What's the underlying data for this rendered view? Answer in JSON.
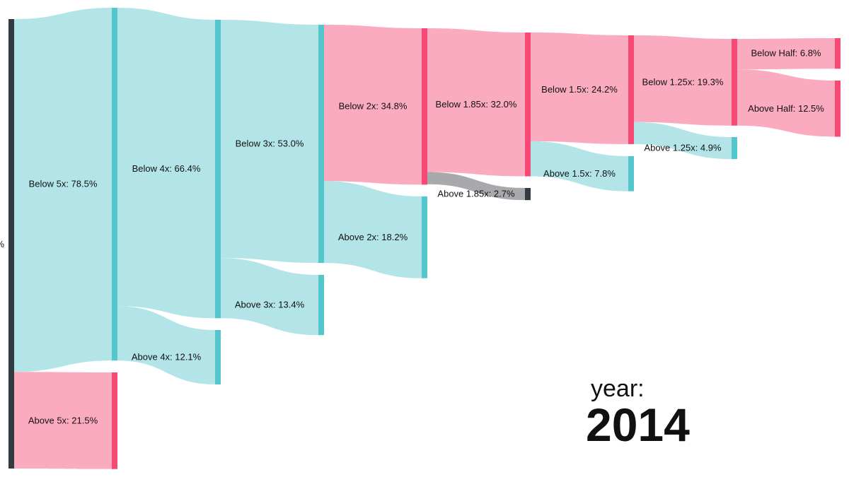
{
  "chart_data": {
    "type": "sankey",
    "unit": "%",
    "root_label_fragment": "%",
    "year_caption": "year:",
    "year": "2014",
    "colors": {
      "teal_node": "#54c6cc",
      "teal_link": "#b3e5e8",
      "pink_node": "#f64a75",
      "pink_link": "#fbabbf",
      "dark_node": "#343a42",
      "grey_link": "#a7a9ac"
    },
    "nodes": [
      {
        "id": "root",
        "label": "",
        "value": 100.0,
        "color": "dark"
      },
      {
        "id": "b5",
        "label": "Below 5x: 78.5%",
        "value": 78.5,
        "color": "teal"
      },
      {
        "id": "a5",
        "label": "Above 5x: 21.5%",
        "value": 21.5,
        "color": "pink"
      },
      {
        "id": "b4",
        "label": "Below 4x: 66.4%",
        "value": 66.4,
        "color": "teal"
      },
      {
        "id": "a4",
        "label": "Above 4x: 12.1%",
        "value": 12.1,
        "color": "teal"
      },
      {
        "id": "b3",
        "label": "Below 3x: 53.0%",
        "value": 53.0,
        "color": "teal"
      },
      {
        "id": "a3",
        "label": "Above 3x: 13.4%",
        "value": 13.4,
        "color": "teal"
      },
      {
        "id": "b2",
        "label": "Below 2x: 34.8%",
        "value": 34.8,
        "color": "pink"
      },
      {
        "id": "a2",
        "label": "Above 2x: 18.2%",
        "value": 18.2,
        "color": "teal"
      },
      {
        "id": "b185",
        "label": "Below 1.85x: 32.0%",
        "value": 32.0,
        "color": "pink"
      },
      {
        "id": "a185",
        "label": "Above 1.85x: 2.7%",
        "value": 2.7,
        "color": "dark"
      },
      {
        "id": "b15",
        "label": "Below 1.5x: 24.2%",
        "value": 24.2,
        "color": "pink"
      },
      {
        "id": "a15",
        "label": "Above 1.5x: 7.8%",
        "value": 7.8,
        "color": "teal"
      },
      {
        "id": "b125",
        "label": "Below 1.25x: 19.3%",
        "value": 19.3,
        "color": "pink"
      },
      {
        "id": "a125",
        "label": "Above 1.25x: 4.9%",
        "value": 4.9,
        "color": "teal"
      },
      {
        "id": "bh",
        "label": "Below Half: 6.8%",
        "value": 6.8,
        "color": "pink"
      },
      {
        "id": "ah",
        "label": "Above Half: 12.5%",
        "value": 12.5,
        "color": "pink"
      }
    ],
    "links": [
      {
        "source": "root",
        "target": "b5",
        "value": 78.5
      },
      {
        "source": "root",
        "target": "a5",
        "value": 21.5
      },
      {
        "source": "b5",
        "target": "b4",
        "value": 66.4
      },
      {
        "source": "b5",
        "target": "a4",
        "value": 12.1
      },
      {
        "source": "b4",
        "target": "b3",
        "value": 53.0
      },
      {
        "source": "b4",
        "target": "a3",
        "value": 13.4
      },
      {
        "source": "b3",
        "target": "b2",
        "value": 34.8
      },
      {
        "source": "b3",
        "target": "a2",
        "value": 18.2
      },
      {
        "source": "b2",
        "target": "b185",
        "value": 32.0
      },
      {
        "source": "b2",
        "target": "a185",
        "value": 2.7
      },
      {
        "source": "b185",
        "target": "b15",
        "value": 24.2
      },
      {
        "source": "b185",
        "target": "a15",
        "value": 7.8
      },
      {
        "source": "b15",
        "target": "b125",
        "value": 19.3
      },
      {
        "source": "b15",
        "target": "a125",
        "value": 4.9
      },
      {
        "source": "b125",
        "target": "bh",
        "value": 6.8
      },
      {
        "source": "b125",
        "target": "ah",
        "value": 12.5
      }
    ]
  }
}
